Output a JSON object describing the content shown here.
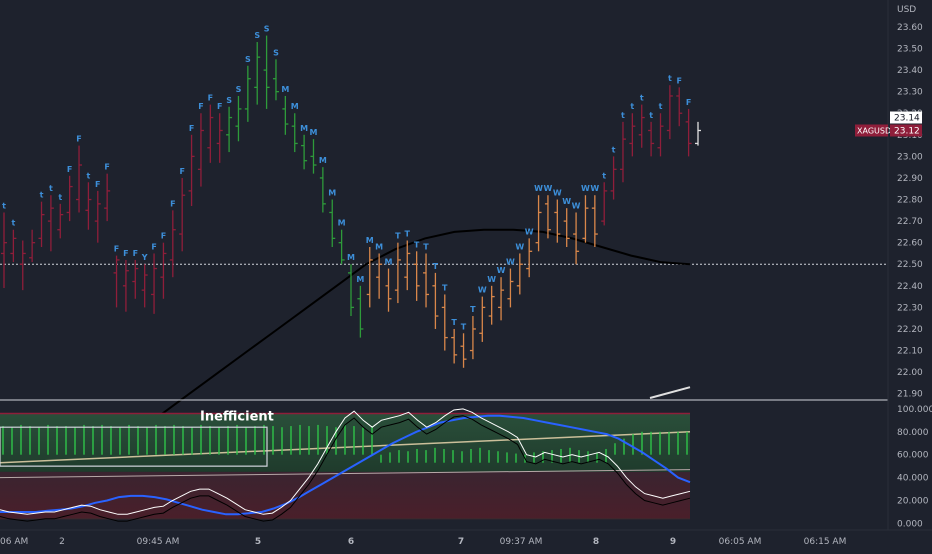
{
  "chart_data": [
    {
      "type": "candlestick",
      "symbol": "XAGUSD",
      "currency_label": "USD",
      "price_tag": "23.12",
      "price_tag_top": "23.14",
      "y_ticks": [
        "23.60",
        "23.50",
        "23.40",
        "23.30",
        "23.20",
        "23.10",
        "23.00",
        "22.90",
        "22.80",
        "22.70",
        "22.60",
        "22.50",
        "22.40",
        "22.30",
        "22.20",
        "22.10",
        "22.00",
        "21.90"
      ],
      "ylim": [
        21.88,
        23.66
      ],
      "reference_line": 22.5,
      "colors": {
        "F": "#3d8fd9",
        "t": "#3d8fd9",
        "S": "#3d8fd9",
        "M": "#3d8fd9",
        "T": "#3d8fd9",
        "W": "#3d8fd9"
      },
      "bar_colors": {
        "red": "#8f1e3a",
        "green": "#2e9b3a",
        "orange": "#d9874a"
      },
      "bars": [
        {
          "h": 22.74,
          "l": 22.39,
          "o": 22.55,
          "c": 22.6,
          "col": "red",
          "lab": "t"
        },
        {
          "h": 22.66,
          "l": 22.51,
          "o": 22.55,
          "c": 22.62,
          "col": "red",
          "lab": "t"
        },
        {
          "h": 22.61,
          "l": 22.38,
          "o": 22.5,
          "c": 22.55,
          "col": "red",
          "lab": ""
        },
        {
          "h": 22.66,
          "l": 22.51,
          "o": 22.53,
          "c": 22.6,
          "col": "red",
          "lab": ""
        },
        {
          "h": 22.79,
          "l": 22.58,
          "o": 22.62,
          "c": 22.73,
          "col": "red",
          "lab": "t"
        },
        {
          "h": 22.82,
          "l": 22.56,
          "o": 22.7,
          "c": 22.76,
          "col": "red",
          "lab": "t"
        },
        {
          "h": 22.78,
          "l": 22.62,
          "o": 22.66,
          "c": 22.73,
          "col": "red",
          "lab": "t"
        },
        {
          "h": 22.91,
          "l": 22.7,
          "o": 22.74,
          "c": 22.86,
          "col": "red",
          "lab": "F"
        },
        {
          "h": 23.05,
          "l": 22.74,
          "o": 22.8,
          "c": 22.96,
          "col": "red",
          "lab": "F"
        },
        {
          "h": 22.88,
          "l": 22.66,
          "o": 22.75,
          "c": 22.8,
          "col": "red",
          "lab": "t"
        },
        {
          "h": 22.84,
          "l": 22.6,
          "o": 22.7,
          "c": 22.78,
          "col": "red",
          "lab": "F"
        },
        {
          "h": 22.92,
          "l": 22.7,
          "o": 22.76,
          "c": 22.84,
          "col": "red",
          "lab": "F"
        },
        {
          "h": 22.54,
          "l": 22.3,
          "o": 22.46,
          "c": 22.52,
          "col": "red",
          "lab": "F"
        },
        {
          "h": 22.52,
          "l": 22.28,
          "o": 22.4,
          "c": 22.47,
          "col": "red",
          "lab": "F"
        },
        {
          "h": 22.52,
          "l": 22.34,
          "o": 22.42,
          "c": 22.48,
          "col": "red",
          "lab": "F"
        },
        {
          "h": 22.5,
          "l": 22.3,
          "o": 22.38,
          "c": 22.45,
          "col": "red",
          "lab": "Y"
        },
        {
          "h": 22.55,
          "l": 22.27,
          "o": 22.36,
          "c": 22.48,
          "col": "red",
          "lab": "F"
        },
        {
          "h": 22.6,
          "l": 22.34,
          "o": 22.44,
          "c": 22.55,
          "col": "red",
          "lab": "F"
        },
        {
          "h": 22.75,
          "l": 22.44,
          "o": 22.52,
          "c": 22.66,
          "col": "red",
          "lab": "F"
        },
        {
          "h": 22.9,
          "l": 22.56,
          "o": 22.64,
          "c": 22.82,
          "col": "red",
          "lab": "F"
        },
        {
          "h": 23.1,
          "l": 22.77,
          "o": 22.84,
          "c": 23.0,
          "col": "red",
          "lab": "F"
        },
        {
          "h": 23.2,
          "l": 22.86,
          "o": 22.94,
          "c": 23.12,
          "col": "red",
          "lab": "F"
        },
        {
          "h": 23.24,
          "l": 22.97,
          "o": 23.04,
          "c": 23.18,
          "col": "red",
          "lab": "F"
        },
        {
          "h": 23.2,
          "l": 22.97,
          "o": 23.06,
          "c": 23.12,
          "col": "red",
          "lab": "F"
        },
        {
          "h": 23.23,
          "l": 23.02,
          "o": 23.1,
          "c": 23.18,
          "col": "green",
          "lab": "S"
        },
        {
          "h": 23.28,
          "l": 23.07,
          "o": 23.14,
          "c": 23.22,
          "col": "green",
          "lab": "S"
        },
        {
          "h": 23.42,
          "l": 23.16,
          "o": 23.22,
          "c": 23.36,
          "col": "green",
          "lab": "S"
        },
        {
          "h": 23.53,
          "l": 23.24,
          "o": 23.32,
          "c": 23.46,
          "col": "green",
          "lab": "S"
        },
        {
          "h": 23.56,
          "l": 23.22,
          "o": 23.4,
          "c": 23.32,
          "col": "green",
          "lab": "S"
        },
        {
          "h": 23.45,
          "l": 23.26,
          "o": 23.36,
          "c": 23.3,
          "col": "green",
          "lab": "S"
        },
        {
          "h": 23.28,
          "l": 23.1,
          "o": 23.22,
          "c": 23.15,
          "col": "green",
          "lab": "M"
        },
        {
          "h": 23.2,
          "l": 23.02,
          "o": 23.14,
          "c": 23.06,
          "col": "green",
          "lab": "M"
        },
        {
          "h": 23.1,
          "l": 22.94,
          "o": 23.05,
          "c": 22.98,
          "col": "green",
          "lab": "M"
        },
        {
          "h": 23.08,
          "l": 22.92,
          "o": 23.0,
          "c": 22.96,
          "col": "green",
          "lab": "M"
        },
        {
          "h": 22.95,
          "l": 22.74,
          "o": 22.9,
          "c": 22.78,
          "col": "green",
          "lab": "M"
        },
        {
          "h": 22.8,
          "l": 22.58,
          "o": 22.74,
          "c": 22.62,
          "col": "green",
          "lab": "M"
        },
        {
          "h": 22.66,
          "l": 22.5,
          "o": 22.6,
          "c": 22.52,
          "col": "green",
          "lab": "M"
        },
        {
          "h": 22.5,
          "l": 22.26,
          "o": 22.46,
          "c": 22.3,
          "col": "green",
          "lab": "M"
        },
        {
          "h": 22.4,
          "l": 22.16,
          "o": 22.34,
          "c": 22.2,
          "col": "green",
          "lab": "M"
        },
        {
          "h": 22.58,
          "l": 22.3,
          "o": 22.36,
          "c": 22.52,
          "col": "orange",
          "lab": "M"
        },
        {
          "h": 22.55,
          "l": 22.34,
          "o": 22.44,
          "c": 22.5,
          "col": "orange",
          "lab": "M"
        },
        {
          "h": 22.48,
          "l": 22.28,
          "o": 22.4,
          "c": 22.34,
          "col": "orange",
          "lab": "M"
        },
        {
          "h": 22.6,
          "l": 22.32,
          "o": 22.38,
          "c": 22.52,
          "col": "orange",
          "lab": "T"
        },
        {
          "h": 22.61,
          "l": 22.38,
          "o": 22.44,
          "c": 22.55,
          "col": "orange",
          "lab": "T"
        },
        {
          "h": 22.56,
          "l": 22.33,
          "o": 22.5,
          "c": 22.4,
          "col": "orange",
          "lab": "T"
        },
        {
          "h": 22.55,
          "l": 22.3,
          "o": 22.46,
          "c": 22.36,
          "col": "orange",
          "lab": "T"
        },
        {
          "h": 22.46,
          "l": 22.2,
          "o": 22.4,
          "c": 22.26,
          "col": "orange",
          "lab": "T"
        },
        {
          "h": 22.36,
          "l": 22.1,
          "o": 22.3,
          "c": 22.16,
          "col": "orange",
          "lab": "T"
        },
        {
          "h": 22.2,
          "l": 22.04,
          "o": 22.16,
          "c": 22.08,
          "col": "orange",
          "lab": "T"
        },
        {
          "h": 22.18,
          "l": 22.02,
          "o": 22.12,
          "c": 22.06,
          "col": "orange",
          "lab": "T"
        },
        {
          "h": 22.26,
          "l": 22.06,
          "o": 22.1,
          "c": 22.2,
          "col": "orange",
          "lab": "T"
        },
        {
          "h": 22.35,
          "l": 22.14,
          "o": 22.18,
          "c": 22.3,
          "col": "orange",
          "lab": "W"
        },
        {
          "h": 22.4,
          "l": 22.22,
          "o": 22.26,
          "c": 22.35,
          "col": "orange",
          "lab": "W"
        },
        {
          "h": 22.44,
          "l": 22.24,
          "o": 22.3,
          "c": 22.38,
          "col": "orange",
          "lab": "W"
        },
        {
          "h": 22.48,
          "l": 22.3,
          "o": 22.34,
          "c": 22.42,
          "col": "orange",
          "lab": "W"
        },
        {
          "h": 22.55,
          "l": 22.36,
          "o": 22.4,
          "c": 22.5,
          "col": "orange",
          "lab": "W"
        },
        {
          "h": 22.62,
          "l": 22.44,
          "o": 22.48,
          "c": 22.56,
          "col": "orange",
          "lab": "W"
        },
        {
          "h": 22.82,
          "l": 22.56,
          "o": 22.6,
          "c": 22.74,
          "col": "orange",
          "lab": "W"
        },
        {
          "h": 22.82,
          "l": 22.62,
          "o": 22.78,
          "c": 22.66,
          "col": "orange",
          "lab": "W"
        },
        {
          "h": 22.8,
          "l": 22.6,
          "o": 22.74,
          "c": 22.64,
          "col": "orange",
          "lab": "W"
        },
        {
          "h": 22.76,
          "l": 22.58,
          "o": 22.7,
          "c": 22.62,
          "col": "orange",
          "lab": "W"
        },
        {
          "h": 22.74,
          "l": 22.5,
          "o": 22.64,
          "c": 22.56,
          "col": "orange",
          "lab": "W"
        },
        {
          "h": 22.82,
          "l": 22.6,
          "o": 22.62,
          "c": 22.76,
          "col": "orange",
          "lab": "W"
        },
        {
          "h": 22.82,
          "l": 22.58,
          "o": 22.76,
          "c": 22.64,
          "col": "orange",
          "lab": "W"
        },
        {
          "h": 22.88,
          "l": 22.68,
          "o": 22.7,
          "c": 22.84,
          "col": "red",
          "lab": "t"
        },
        {
          "h": 23.0,
          "l": 22.8,
          "o": 22.84,
          "c": 22.94,
          "col": "red",
          "lab": "t"
        },
        {
          "h": 23.16,
          "l": 22.88,
          "o": 22.94,
          "c": 23.08,
          "col": "red",
          "lab": "t"
        },
        {
          "h": 23.2,
          "l": 23.0,
          "o": 23.06,
          "c": 23.14,
          "col": "red",
          "lab": "t"
        },
        {
          "h": 23.24,
          "l": 23.04,
          "o": 23.1,
          "c": 23.18,
          "col": "red",
          "lab": "t"
        },
        {
          "h": 23.16,
          "l": 23.0,
          "o": 23.12,
          "c": 23.06,
          "col": "red",
          "lab": "t"
        },
        {
          "h": 23.2,
          "l": 23.0,
          "o": 23.04,
          "c": 23.14,
          "col": "red",
          "lab": "t"
        },
        {
          "h": 23.33,
          "l": 23.08,
          "o": 23.12,
          "c": 23.28,
          "col": "red",
          "lab": "t"
        },
        {
          "h": 23.32,
          "l": 23.14,
          "o": 23.28,
          "c": 23.2,
          "col": "red",
          "lab": "F"
        },
        {
          "h": 23.22,
          "l": 23.0,
          "o": 23.16,
          "c": 23.06,
          "col": "red",
          "lab": "F"
        },
        {
          "h": 23.16,
          "l": 23.05,
          "o": 23.06,
          "c": 23.12,
          "col": "white",
          "lab": ""
        }
      ],
      "black_curve_y": [
        21.8,
        21.9,
        22.0,
        22.1,
        22.2,
        22.3,
        22.4,
        22.5,
        22.57,
        22.62,
        22.65,
        22.66,
        22.66,
        22.65,
        22.62,
        22.58,
        22.54,
        22.51,
        22.5
      ],
      "white_curve_y": [
        21.9,
        21.93
      ]
    },
    {
      "type": "oscillator",
      "y_ticks": [
        "100.000",
        "80.000",
        "60.000",
        "40.000",
        "20.000",
        "0.000"
      ],
      "ylim": [
        -4,
        106
      ],
      "annotation": "Inefficient",
      "histogram": [
        85,
        84,
        86,
        85,
        84,
        86,
        85,
        85,
        84,
        86,
        85,
        86,
        85,
        84,
        86,
        85,
        84,
        86,
        85,
        86,
        85,
        84,
        86,
        85,
        84,
        85,
        86,
        84,
        85,
        86,
        85,
        84,
        85,
        86,
        85,
        86,
        85,
        84,
        86,
        85,
        84,
        85,
        60,
        62,
        64,
        63,
        65,
        64,
        66,
        65,
        64,
        63,
        65,
        66,
        64,
        63,
        62,
        61,
        60,
        62,
        63,
        64,
        65,
        66,
        64,
        63,
        62,
        65,
        70,
        74,
        78,
        80,
        80,
        80,
        80,
        80,
        80
      ],
      "white_line": [
        12,
        10,
        9,
        8,
        9,
        10,
        10,
        12,
        14,
        16,
        15,
        12,
        10,
        8,
        8,
        10,
        12,
        14,
        15,
        20,
        24,
        28,
        30,
        30,
        26,
        22,
        17,
        12,
        10,
        8,
        9,
        14,
        20,
        30,
        40,
        52,
        66,
        80,
        92,
        98,
        90,
        84,
        90,
        92,
        94,
        97,
        90,
        84,
        88,
        94,
        99,
        100,
        97,
        92,
        88,
        84,
        80,
        75,
        60,
        58,
        62,
        60,
        58,
        60,
        58,
        60,
        62,
        58,
        50,
        40,
        32,
        26,
        24,
        22,
        24,
        26,
        28
      ],
      "blue_line": [
        10,
        10,
        10,
        10,
        11,
        12,
        13,
        15,
        18,
        20,
        23,
        24,
        24,
        23,
        21,
        18,
        15,
        12,
        10,
        8,
        8,
        9,
        10,
        13,
        17,
        22,
        28,
        34,
        40,
        46,
        52,
        58,
        64,
        70,
        75,
        80,
        84,
        88,
        90,
        92,
        93,
        94,
        94,
        93,
        92,
        90,
        88,
        86,
        84,
        82,
        80,
        78,
        74,
        68,
        62,
        55,
        48,
        40,
        36
      ]
    }
  ],
  "x_ticks": [
    "06 AM",
    "2",
    "09:45 AM",
    "5",
    "6",
    "7",
    "09:37 AM",
    "8",
    "9",
    "06:05 AM",
    "06:15 AM"
  ]
}
